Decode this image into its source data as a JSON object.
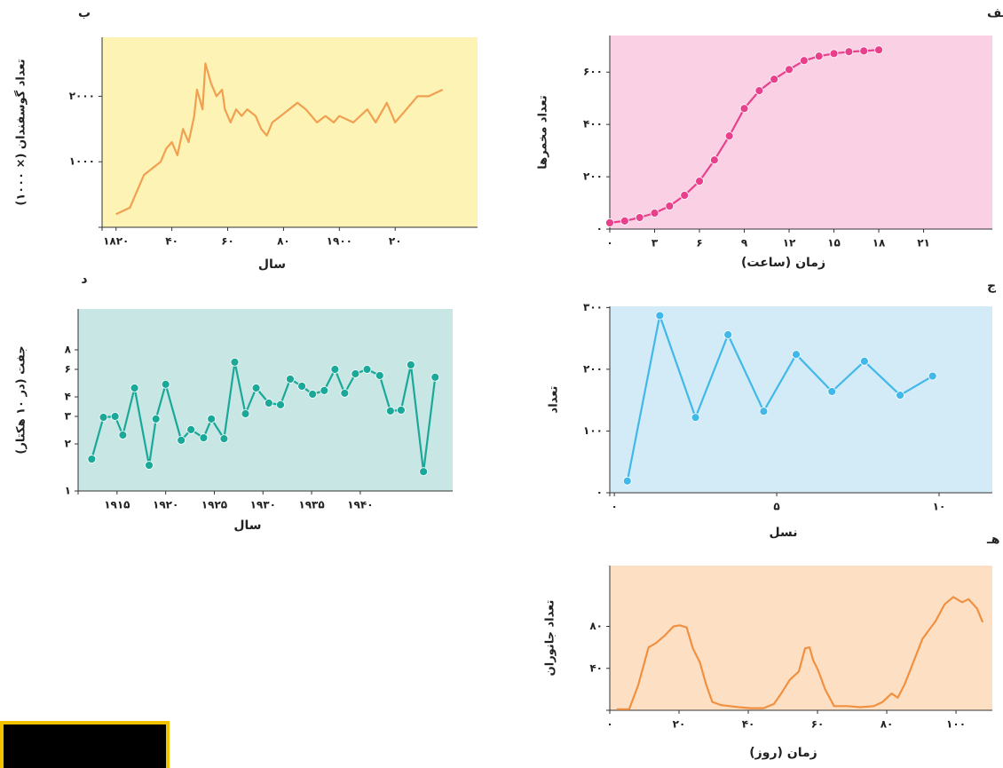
{
  "chart_data": [
    {
      "type": "line",
      "title": "الف",
      "y_label": "تعداد مخمرها",
      "x_label": "زمان (ساعت)",
      "color": "#e8408c",
      "background": "#f9d0e4",
      "markers": true,
      "x": [
        0,
        1,
        2,
        3,
        4,
        5,
        6,
        7,
        8,
        9,
        10,
        11,
        12,
        13,
        14,
        15,
        16,
        17,
        18
      ],
      "values": [
        24,
        31,
        44,
        61,
        88,
        129,
        183,
        264,
        356,
        461,
        529,
        573,
        610,
        644,
        661,
        671,
        678,
        681,
        685
      ],
      "xlim": [
        0,
        25.6
      ],
      "ylim": [
        0,
        740
      ],
      "xticks": [
        {
          "value": 0,
          "label": "۰"
        },
        {
          "value": 3,
          "label": "۳"
        },
        {
          "value": 6,
          "label": "۶"
        },
        {
          "value": 9,
          "label": "۹"
        },
        {
          "value": 12,
          "label": "۱۲"
        },
        {
          "value": 15,
          "label": "۱۵"
        },
        {
          "value": 18,
          "label": "۱۸"
        },
        {
          "value": 21,
          "label": "۲۱"
        }
      ],
      "yticks": [
        {
          "value": 0,
          "label": "۰"
        },
        {
          "value": 200,
          "label": "۲۰۰"
        },
        {
          "value": 400,
          "label": "۴۰۰"
        },
        {
          "value": 600,
          "label": "۶۰۰"
        }
      ]
    },
    {
      "type": "line",
      "title": "ب",
      "y_label": "تعداد گوسفندان (× ۱۰۰۰)",
      "x_label": "سال",
      "color": "#f0a050",
      "background": "#fdf3b5",
      "markers": false,
      "x": [
        1820,
        1825,
        1827,
        1830,
        1833,
        1836,
        1838,
        1840,
        1842,
        1844,
        1846,
        1848,
        1849,
        1851,
        1852,
        1854,
        1856,
        1858,
        1859,
        1861,
        1863,
        1865,
        1867,
        1870,
        1872,
        1874,
        1876,
        1879,
        1882,
        1885,
        1888,
        1892,
        1895,
        1898,
        1900,
        1905,
        1910,
        1913,
        1917,
        1920,
        1924,
        1928,
        1932,
        1937
      ],
      "values": [
        200,
        300,
        500,
        800,
        900,
        1000,
        1200,
        1300,
        1100,
        1500,
        1300,
        1700,
        2100,
        1800,
        2500,
        2200,
        2000,
        2100,
        1800,
        1600,
        1800,
        1700,
        1800,
        1700,
        1500,
        1400,
        1600,
        1700,
        1800,
        1900,
        1800,
        1600,
        1700,
        1600,
        1700,
        1600,
        1800,
        1600,
        1900,
        1600,
        1800,
        2000,
        2000,
        2100
      ],
      "xlim": [
        1815,
        1949.5
      ],
      "ylim": [
        0,
        2900
      ],
      "xticks": [
        {
          "value": 1820,
          "label": "۱۸۲۰"
        },
        {
          "value": 1840,
          "label": "۴۰"
        },
        {
          "value": 1860,
          "label": "۶۰"
        },
        {
          "value": 1880,
          "label": "۸۰"
        },
        {
          "value": 1900,
          "label": "۱۹۰۰"
        },
        {
          "value": 1920,
          "label": "۲۰"
        }
      ],
      "yticks": [
        {
          "value": 1000,
          "label": "۱۰۰۰"
        },
        {
          "value": 2000,
          "label": "۲۰۰۰"
        }
      ]
    },
    {
      "type": "line",
      "title": "ج",
      "y_label": "تعداد",
      "x_label": "نسل",
      "color": "#40b8e8",
      "background": "#d3ebf7",
      "markers": true,
      "x": [
        0.4,
        1.4,
        2.5,
        3.5,
        4.6,
        5.6,
        6.7,
        7.7,
        8.8,
        9.8
      ],
      "values": [
        19,
        287,
        122,
        256,
        132,
        224,
        164,
        213,
        158,
        189
      ],
      "xlim": [
        -0.14,
        11.64
      ],
      "ylim": [
        0,
        302
      ],
      "xticks": [
        {
          "value": 0,
          "label": "۰"
        },
        {
          "value": 5,
          "label": "۵"
        },
        {
          "value": 10,
          "label": "۱۰"
        }
      ],
      "yticks": [
        {
          "value": 0,
          "label": "۰"
        },
        {
          "value": 100,
          "label": "۱۰۰"
        },
        {
          "value": 200,
          "label": "۲۰۰"
        },
        {
          "value": 300,
          "label": "۳۰۰"
        }
      ]
    },
    {
      "type": "line",
      "title": "د",
      "y_label": "جفت (در ۱۰ هکتار)",
      "x_label": "سال",
      "color": "#1aa898",
      "background": "#c8e6e4",
      "markers": true,
      "log_y": true,
      "x": [
        1912.4,
        1913.6,
        1914.8,
        1915.6,
        1916.8,
        1918.3,
        1919,
        1920,
        1921.6,
        1922.6,
        1923.9,
        1924.7,
        1926,
        1927.1,
        1928.2,
        1929.3,
        1930.6,
        1931.8,
        1932.8,
        1934,
        1935.1,
        1936.3,
        1937.4,
        1938.4,
        1939.5,
        1940.7,
        1942,
        1943.1,
        1944.2,
        1945.2,
        1946.5,
        1947.7
      ],
      "values": [
        1.6,
        2.96,
        3.0,
        2.28,
        4.56,
        1.46,
        2.89,
        4.81,
        2.11,
        2.47,
        2.19,
        2.89,
        2.16,
        6.67,
        3.12,
        4.56,
        3.65,
        3.56,
        5.2,
        4.68,
        4.16,
        4.39,
        6.0,
        4.22,
        5.62,
        6.0,
        5.48,
        3.25,
        3.29,
        6.41,
        1.33,
        5.34
      ],
      "xlim": [
        1911,
        1949.5
      ],
      "ylim": [
        1,
        14.6
      ],
      "xticks": [
        {
          "value": 1915,
          "label": "۱۹۱۵"
        },
        {
          "value": 1920,
          "label": "۱۹۲۰"
        },
        {
          "value": 1925,
          "label": "۱۹۲۵"
        },
        {
          "value": 1930,
          "label": "۱۹۳۰"
        },
        {
          "value": 1935,
          "label": "۱۹۳۵"
        },
        {
          "value": 1940,
          "label": "۱۹۴۰"
        }
      ],
      "yticks": [
        {
          "value": 1,
          "label": "۱"
        },
        {
          "value": 2,
          "label": "۲"
        },
        {
          "value": 3,
          "label": "۳"
        },
        {
          "value": 4,
          "label": "۴"
        },
        {
          "value": 6,
          "label": "۶"
        },
        {
          "value": 8,
          "label": "۸"
        }
      ]
    },
    {
      "type": "line",
      "title": "هـ",
      "y_label": "تعداد جانوران",
      "x_label": "زمان (روز)",
      "color": "#f09040",
      "background": "#fde0c4",
      "markers": false,
      "x": [
        2,
        5.6,
        8.2,
        11.2,
        13.3,
        15.8,
        18.4,
        20.2,
        22.2,
        24,
        26,
        27.8,
        29.6,
        32.1,
        34.7,
        37.2,
        40.6,
        44.4,
        47.4,
        49.5,
        52,
        54.6,
        56.4,
        57.7,
        58.7,
        60.2,
        62.2,
        64.8,
        68.6,
        72.4,
        76.3,
        78.8,
        81.4,
        83.2,
        85.2,
        87.8,
        90.3,
        94.1,
        96.7,
        99.2,
        101.8,
        103.6,
        106.1,
        107.7
      ],
      "values": [
        1,
        1,
        24,
        60,
        64,
        71,
        80,
        81,
        79,
        59,
        46,
        25,
        8,
        5,
        4,
        3,
        2,
        2,
        6,
        16,
        29,
        37,
        59,
        60,
        48,
        38,
        20,
        4,
        4,
        3,
        4,
        8,
        16,
        12,
        25,
        47,
        68,
        85,
        101,
        108,
        103,
        106,
        97,
        84
      ],
      "xlim": [
        0,
        110.5
      ],
      "ylim": [
        0,
        138
      ],
      "xticks": [
        {
          "value": 0,
          "label": "۰"
        },
        {
          "value": 20,
          "label": "۲۰"
        },
        {
          "value": 40,
          "label": "۴۰"
        },
        {
          "value": 60,
          "label": "۶۰"
        },
        {
          "value": 80,
          "label": "۸۰"
        },
        {
          "value": 100,
          "label": "۱۰۰"
        }
      ],
      "yticks": [
        {
          "value": 40,
          "label": "۴۰"
        },
        {
          "value": 80,
          "label": "۸۰"
        }
      ]
    }
  ]
}
